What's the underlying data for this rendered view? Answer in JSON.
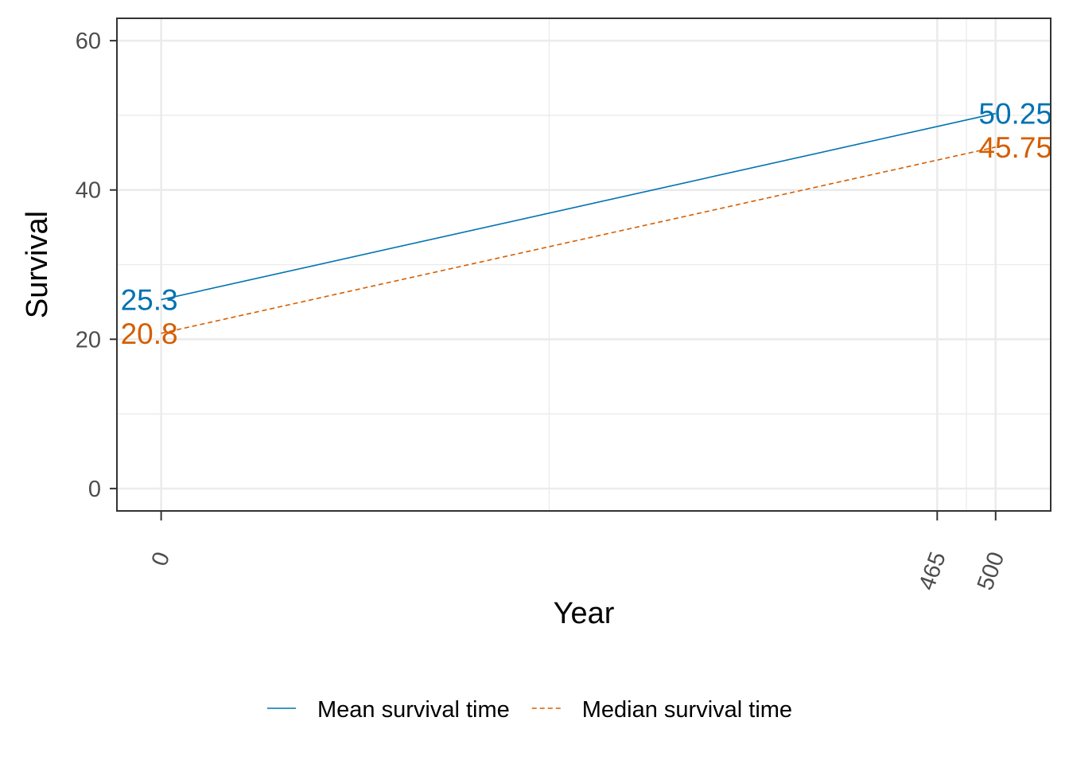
{
  "chart_data": {
    "type": "line",
    "xlabel": "Year",
    "ylabel": "Survival",
    "xlim": [
      -26.5,
      533
    ],
    "ylim": [
      -3,
      63
    ],
    "x_ticks": [
      0,
      465,
      500
    ],
    "x_tick_labels": [
      "0",
      "465",
      "500"
    ],
    "x_minor_grid": [
      232.5,
      482.5
    ],
    "y_ticks": [
      0,
      20,
      40,
      60
    ],
    "y_tick_labels": [
      "0",
      "20",
      "40",
      "60"
    ],
    "y_minor_grid": [
      10,
      30,
      50
    ],
    "grid": true,
    "legend_position": "bottom",
    "series": [
      {
        "name": "Mean survival time",
        "x": [
          0,
          500
        ],
        "y": [
          25.3,
          50.25
        ],
        "labels": [
          "25.3",
          "50.25"
        ],
        "color": "#0072B2",
        "line_style": "solid"
      },
      {
        "name": "Median survival time",
        "x": [
          0,
          500
        ],
        "y": [
          20.8,
          45.75
        ],
        "labels": [
          "20.8",
          "45.75"
        ],
        "color": "#D55E00",
        "line_style": "dashed"
      }
    ]
  }
}
